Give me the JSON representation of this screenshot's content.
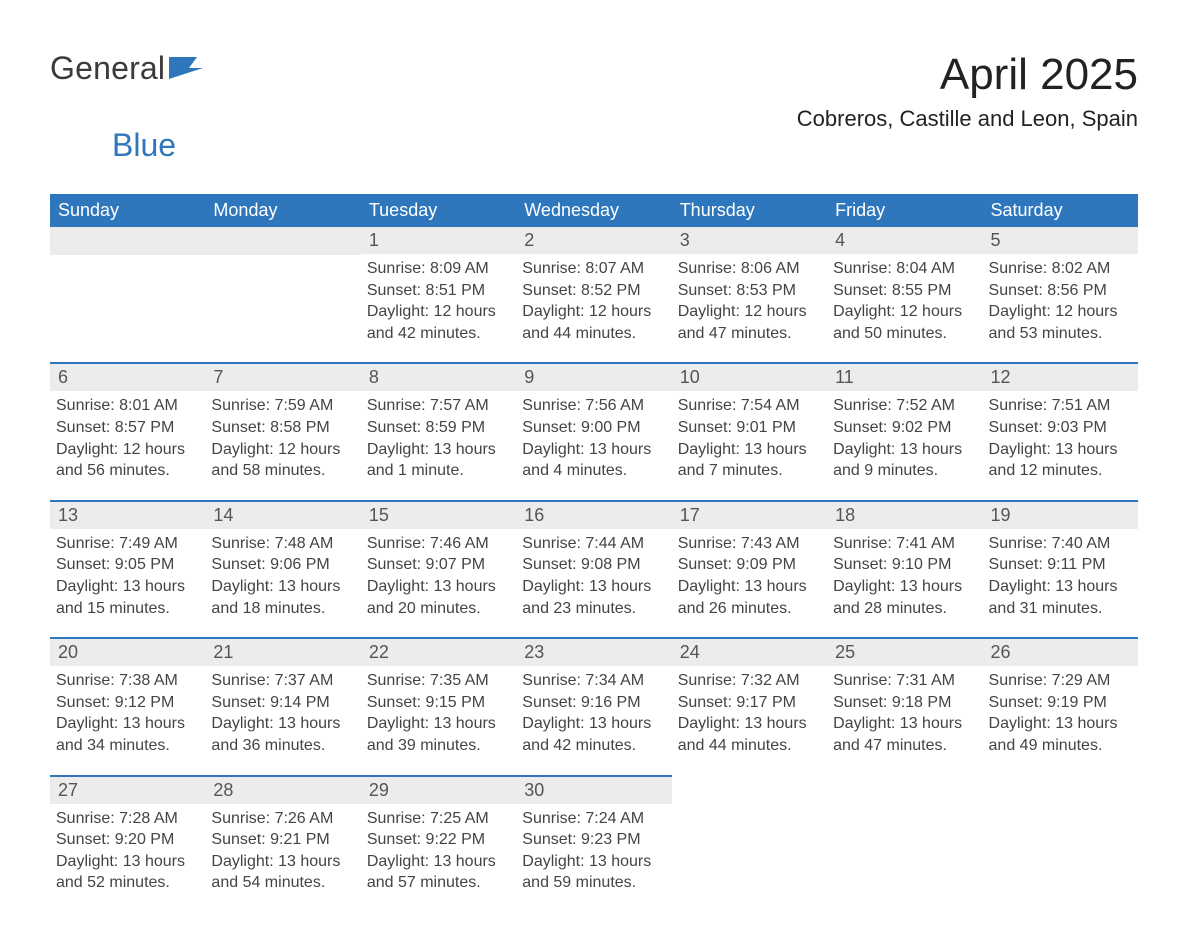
{
  "logo": {
    "text1": "General",
    "text2": "Blue"
  },
  "title": "April 2025",
  "subtitle": "Cobreros, Castille and Leon, Spain",
  "colors": {
    "brand_blue": "#2f77bd",
    "header_blue": "#2f77bd",
    "row_sep": "#2f77bd",
    "daynum_bg": "#ececec",
    "page_bg": "#ffffff",
    "text_dark": "#333333"
  },
  "weekdays": [
    "Sunday",
    "Monday",
    "Tuesday",
    "Wednesday",
    "Thursday",
    "Friday",
    "Saturday"
  ],
  "weeks": [
    [
      {
        "day": "",
        "sunrise": "",
        "sunset": "",
        "daylight": ""
      },
      {
        "day": "",
        "sunrise": "",
        "sunset": "",
        "daylight": ""
      },
      {
        "day": "1",
        "sunrise": "Sunrise: 8:09 AM",
        "sunset": "Sunset: 8:51 PM",
        "daylight": "Daylight: 12 hours and 42 minutes."
      },
      {
        "day": "2",
        "sunrise": "Sunrise: 8:07 AM",
        "sunset": "Sunset: 8:52 PM",
        "daylight": "Daylight: 12 hours and 44 minutes."
      },
      {
        "day": "3",
        "sunrise": "Sunrise: 8:06 AM",
        "sunset": "Sunset: 8:53 PM",
        "daylight": "Daylight: 12 hours and 47 minutes."
      },
      {
        "day": "4",
        "sunrise": "Sunrise: 8:04 AM",
        "sunset": "Sunset: 8:55 PM",
        "daylight": "Daylight: 12 hours and 50 minutes."
      },
      {
        "day": "5",
        "sunrise": "Sunrise: 8:02 AM",
        "sunset": "Sunset: 8:56 PM",
        "daylight": "Daylight: 12 hours and 53 minutes."
      }
    ],
    [
      {
        "day": "6",
        "sunrise": "Sunrise: 8:01 AM",
        "sunset": "Sunset: 8:57 PM",
        "daylight": "Daylight: 12 hours and 56 minutes."
      },
      {
        "day": "7",
        "sunrise": "Sunrise: 7:59 AM",
        "sunset": "Sunset: 8:58 PM",
        "daylight": "Daylight: 12 hours and 58 minutes."
      },
      {
        "day": "8",
        "sunrise": "Sunrise: 7:57 AM",
        "sunset": "Sunset: 8:59 PM",
        "daylight": "Daylight: 13 hours and 1 minute."
      },
      {
        "day": "9",
        "sunrise": "Sunrise: 7:56 AM",
        "sunset": "Sunset: 9:00 PM",
        "daylight": "Daylight: 13 hours and 4 minutes."
      },
      {
        "day": "10",
        "sunrise": "Sunrise: 7:54 AM",
        "sunset": "Sunset: 9:01 PM",
        "daylight": "Daylight: 13 hours and 7 minutes."
      },
      {
        "day": "11",
        "sunrise": "Sunrise: 7:52 AM",
        "sunset": "Sunset: 9:02 PM",
        "daylight": "Daylight: 13 hours and 9 minutes."
      },
      {
        "day": "12",
        "sunrise": "Sunrise: 7:51 AM",
        "sunset": "Sunset: 9:03 PM",
        "daylight": "Daylight: 13 hours and 12 minutes."
      }
    ],
    [
      {
        "day": "13",
        "sunrise": "Sunrise: 7:49 AM",
        "sunset": "Sunset: 9:05 PM",
        "daylight": "Daylight: 13 hours and 15 minutes."
      },
      {
        "day": "14",
        "sunrise": "Sunrise: 7:48 AM",
        "sunset": "Sunset: 9:06 PM",
        "daylight": "Daylight: 13 hours and 18 minutes."
      },
      {
        "day": "15",
        "sunrise": "Sunrise: 7:46 AM",
        "sunset": "Sunset: 9:07 PM",
        "daylight": "Daylight: 13 hours and 20 minutes."
      },
      {
        "day": "16",
        "sunrise": "Sunrise: 7:44 AM",
        "sunset": "Sunset: 9:08 PM",
        "daylight": "Daylight: 13 hours and 23 minutes."
      },
      {
        "day": "17",
        "sunrise": "Sunrise: 7:43 AM",
        "sunset": "Sunset: 9:09 PM",
        "daylight": "Daylight: 13 hours and 26 minutes."
      },
      {
        "day": "18",
        "sunrise": "Sunrise: 7:41 AM",
        "sunset": "Sunset: 9:10 PM",
        "daylight": "Daylight: 13 hours and 28 minutes."
      },
      {
        "day": "19",
        "sunrise": "Sunrise: 7:40 AM",
        "sunset": "Sunset: 9:11 PM",
        "daylight": "Daylight: 13 hours and 31 minutes."
      }
    ],
    [
      {
        "day": "20",
        "sunrise": "Sunrise: 7:38 AM",
        "sunset": "Sunset: 9:12 PM",
        "daylight": "Daylight: 13 hours and 34 minutes."
      },
      {
        "day": "21",
        "sunrise": "Sunrise: 7:37 AM",
        "sunset": "Sunset: 9:14 PM",
        "daylight": "Daylight: 13 hours and 36 minutes."
      },
      {
        "day": "22",
        "sunrise": "Sunrise: 7:35 AM",
        "sunset": "Sunset: 9:15 PM",
        "daylight": "Daylight: 13 hours and 39 minutes."
      },
      {
        "day": "23",
        "sunrise": "Sunrise: 7:34 AM",
        "sunset": "Sunset: 9:16 PM",
        "daylight": "Daylight: 13 hours and 42 minutes."
      },
      {
        "day": "24",
        "sunrise": "Sunrise: 7:32 AM",
        "sunset": "Sunset: 9:17 PM",
        "daylight": "Daylight: 13 hours and 44 minutes."
      },
      {
        "day": "25",
        "sunrise": "Sunrise: 7:31 AM",
        "sunset": "Sunset: 9:18 PM",
        "daylight": "Daylight: 13 hours and 47 minutes."
      },
      {
        "day": "26",
        "sunrise": "Sunrise: 7:29 AM",
        "sunset": "Sunset: 9:19 PM",
        "daylight": "Daylight: 13 hours and 49 minutes."
      }
    ],
    [
      {
        "day": "27",
        "sunrise": "Sunrise: 7:28 AM",
        "sunset": "Sunset: 9:20 PM",
        "daylight": "Daylight: 13 hours and 52 minutes."
      },
      {
        "day": "28",
        "sunrise": "Sunrise: 7:26 AM",
        "sunset": "Sunset: 9:21 PM",
        "daylight": "Daylight: 13 hours and 54 minutes."
      },
      {
        "day": "29",
        "sunrise": "Sunrise: 7:25 AM",
        "sunset": "Sunset: 9:22 PM",
        "daylight": "Daylight: 13 hours and 57 minutes."
      },
      {
        "day": "30",
        "sunrise": "Sunrise: 7:24 AM",
        "sunset": "Sunset: 9:23 PM",
        "daylight": "Daylight: 13 hours and 59 minutes."
      },
      {
        "day": "",
        "sunrise": "",
        "sunset": "",
        "daylight": ""
      },
      {
        "day": "",
        "sunrise": "",
        "sunset": "",
        "daylight": ""
      },
      {
        "day": "",
        "sunrise": "",
        "sunset": "",
        "daylight": ""
      }
    ]
  ]
}
